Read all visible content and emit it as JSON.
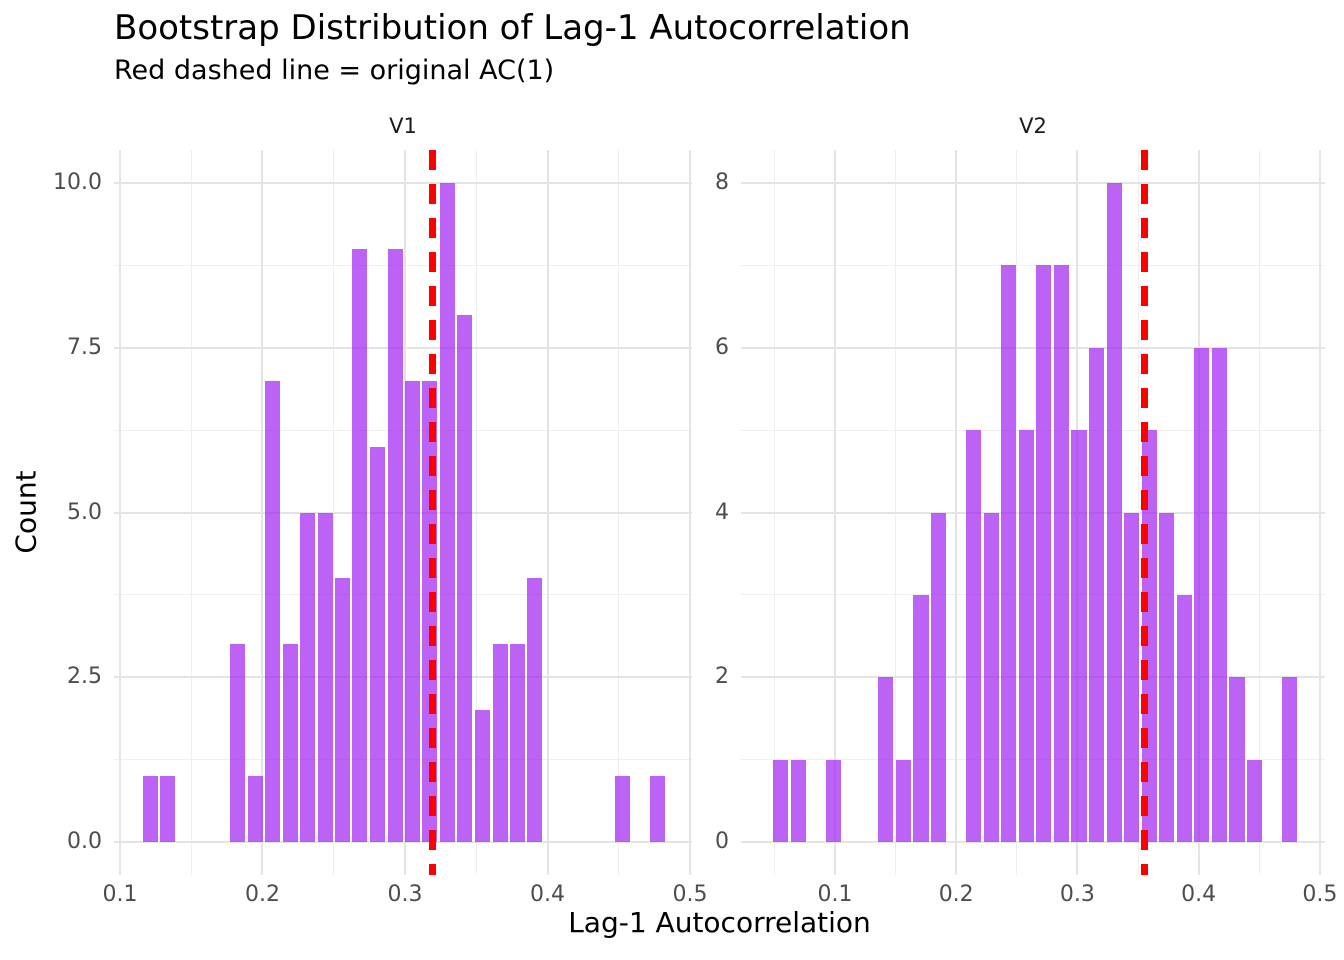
{
  "colors": {
    "bar_fill": "rgba(160,32,240,0.7)",
    "vline": "#FF0000",
    "grid_major": "#E4E4E4",
    "grid_minor": "#EFEFEF",
    "tick_label": "#4D4D4D",
    "strip_label": "#1A1A1A",
    "title_text": "#000000",
    "background": "#FFFFFF"
  },
  "chart_data": {
    "type": "bar",
    "subtype": "faceted-histogram",
    "title": "Bootstrap Distribution of Lag-1 Autocorrelation",
    "subtitle": "Red dashed line = original AC(1)",
    "xlabel": "Lag-1 Autocorrelation",
    "ylabel": "Count",
    "grid": true,
    "legend": false,
    "panels": [
      {
        "facet_label": "V1",
        "xlim": [
          0.0958,
          0.5014
        ],
        "ylim": [
          -0.5,
          10.5
        ],
        "x_ticks": [
          0.1,
          0.2,
          0.3,
          0.4,
          0.5
        ],
        "x_tick_labels": [
          "0.1",
          "0.2",
          "0.3",
          "0.4",
          "0.5"
        ],
        "x_minor": [
          0.15,
          0.25,
          0.35,
          0.45
        ],
        "y_ticks": [
          0,
          2.5,
          5,
          7.5,
          10
        ],
        "y_tick_labels": [
          "0.0",
          "2.5",
          "5.0",
          "7.5",
          "10.0"
        ],
        "y_minor": [
          1.25,
          3.75,
          6.25,
          8.75
        ],
        "binwidth": 0.0123,
        "original_ac1": 0.319,
        "bars": [
          {
            "x": 0.1211,
            "count": 1
          },
          {
            "x": 0.1334,
            "count": 1
          },
          {
            "x": 0.1825,
            "count": 3
          },
          {
            "x": 0.1948,
            "count": 1
          },
          {
            "x": 0.2071,
            "count": 7
          },
          {
            "x": 0.2194,
            "count": 3
          },
          {
            "x": 0.2316,
            "count": 5
          },
          {
            "x": 0.2439,
            "count": 5
          },
          {
            "x": 0.2562,
            "count": 4
          },
          {
            "x": 0.2684,
            "count": 9
          },
          {
            "x": 0.2807,
            "count": 6
          },
          {
            "x": 0.293,
            "count": 9
          },
          {
            "x": 0.3053,
            "count": 7
          },
          {
            "x": 0.3175,
            "count": 7
          },
          {
            "x": 0.3298,
            "count": 10
          },
          {
            "x": 0.3421,
            "count": 8
          },
          {
            "x": 0.3544,
            "count": 2
          },
          {
            "x": 0.3667,
            "count": 3
          },
          {
            "x": 0.3789,
            "count": 3
          },
          {
            "x": 0.3912,
            "count": 4
          },
          {
            "x": 0.4526,
            "count": 1
          },
          {
            "x": 0.4772,
            "count": 1
          }
        ]
      },
      {
        "facet_label": "V2",
        "xlim": [
          0.0225,
          0.5042
        ],
        "ylim": [
          -0.4,
          8.4
        ],
        "x_ticks": [
          0.1,
          0.2,
          0.3,
          0.4,
          0.5
        ],
        "x_tick_labels": [
          "0.1",
          "0.2",
          "0.3",
          "0.4",
          "0.5"
        ],
        "x_minor": [
          0.05,
          0.15,
          0.25,
          0.35,
          0.45
        ],
        "y_ticks": [
          0,
          2,
          4,
          6,
          8
        ],
        "y_tick_labels": [
          "0",
          "2",
          "4",
          "6",
          "8"
        ],
        "y_minor": [
          1,
          3,
          5,
          7
        ],
        "binwidth": 0.0145,
        "original_ac1": 0.355,
        "bars": [
          {
            "x": 0.0552,
            "count": 1
          },
          {
            "x": 0.0697,
            "count": 1
          },
          {
            "x": 0.0986,
            "count": 1
          },
          {
            "x": 0.142,
            "count": 2
          },
          {
            "x": 0.1565,
            "count": 1
          },
          {
            "x": 0.171,
            "count": 3
          },
          {
            "x": 0.1855,
            "count": 4
          },
          {
            "x": 0.2144,
            "count": 5
          },
          {
            "x": 0.2289,
            "count": 4
          },
          {
            "x": 0.2434,
            "count": 7
          },
          {
            "x": 0.2579,
            "count": 5
          },
          {
            "x": 0.2723,
            "count": 7
          },
          {
            "x": 0.2868,
            "count": 7
          },
          {
            "x": 0.3013,
            "count": 5
          },
          {
            "x": 0.3158,
            "count": 6
          },
          {
            "x": 0.3302,
            "count": 8
          },
          {
            "x": 0.3447,
            "count": 4
          },
          {
            "x": 0.3592,
            "count": 5
          },
          {
            "x": 0.3737,
            "count": 4
          },
          {
            "x": 0.3881,
            "count": 3
          },
          {
            "x": 0.4026,
            "count": 6
          },
          {
            "x": 0.4171,
            "count": 6
          },
          {
            "x": 0.4316,
            "count": 2
          },
          {
            "x": 0.446,
            "count": 1
          },
          {
            "x": 0.475,
            "count": 2
          }
        ]
      }
    ]
  }
}
